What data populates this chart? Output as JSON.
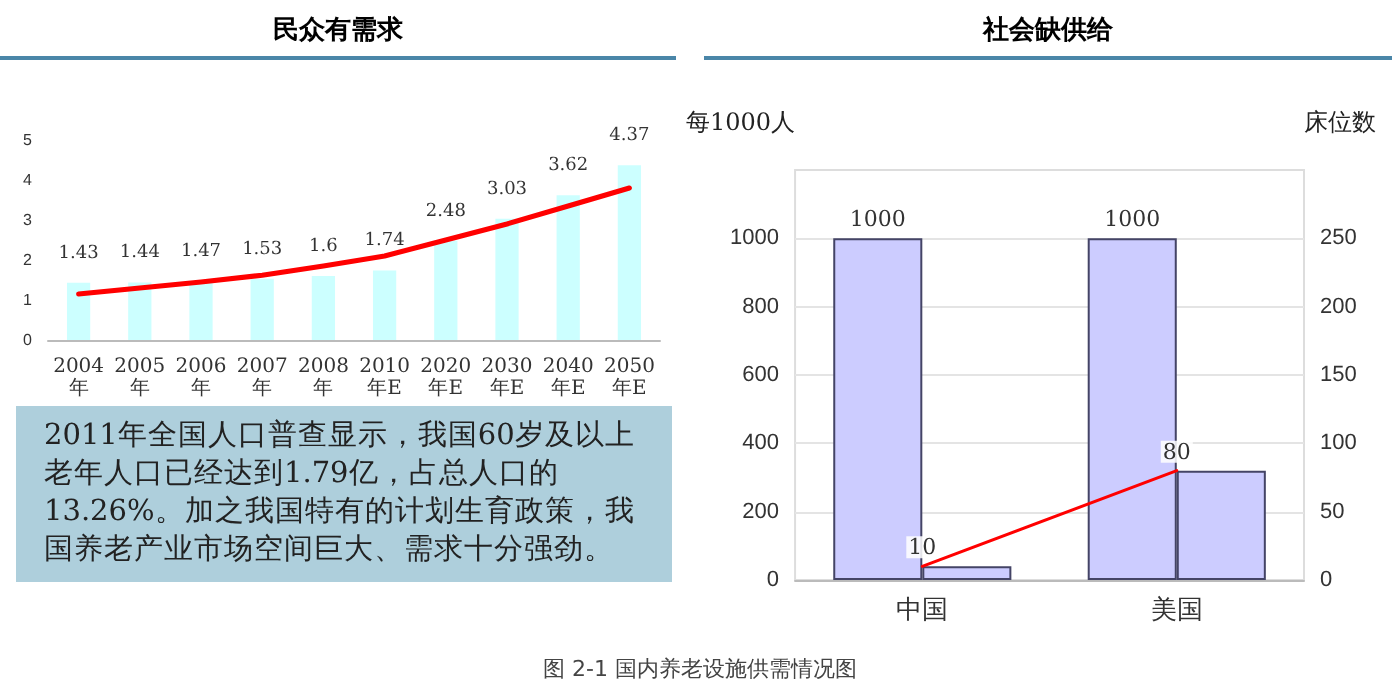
{
  "chart_data": [
    {
      "type": "bar",
      "title": "民众有需求",
      "categories": [
        "2004年",
        "2005年",
        "2006年",
        "2007年",
        "2008年",
        "2010年E",
        "2020年E",
        "2030年E",
        "2040年E",
        "2050年E"
      ],
      "series": [
        {
          "color": "#ccffff",
          "values": [
            1.43,
            1.44,
            1.47,
            1.53,
            1.6,
            1.74,
            2.48,
            3.03,
            3.62,
            4.37
          ],
          "value_labels": [
            "1.43",
            "1.44",
            "1.47",
            "1.53",
            "1.6",
            "1.74",
            "2.48",
            "3.03",
            "3.62",
            "4.37"
          ]
        },
        {
          "type": "line",
          "color": "#ff0000",
          "marker": "none",
          "values": [
            1.15,
            1.3,
            1.45,
            1.62,
            1.85,
            2.1,
            2.5,
            2.9,
            3.35,
            3.8
          ]
        }
      ],
      "ylim": [
        0,
        5
      ],
      "yticks": [
        0,
        1,
        2,
        3,
        4,
        5
      ],
      "data_labels": false,
      "grid": false
    },
    {
      "type": "other",
      "annotations": [
        "2011年全国人口普查显示，我国60岁及以上老年人口已经达到1.79亿，占总人口的13.26%。加之我国特有的计划生育政策，我国养老产业市场空间巨大、需求十分强劲。",
        "图 2-1 国内养老设施供需情况图"
      ]
    },
    {
      "type": "bar",
      "title": "社会缺供给",
      "categories": [
        "中国",
        "美国"
      ],
      "series": [
        {
          "color": "#ccccff",
          "values": [
            1000,
            1000
          ],
          "value_labels": [
            "1000",
            "1000"
          ]
        },
        {
          "color": "#ccccff",
          "axis": "y2",
          "values": [
            10,
            80
          ]
        },
        {
          "type": "line",
          "color": "#ff0000",
          "axis": "y2",
          "marker": "none",
          "values": [
            10,
            80
          ],
          "value_labels": [
            "10",
            "80"
          ]
        }
      ],
      "ylabel": "每1000人",
      "y2label": "床位数",
      "ylim": [
        0,
        1200
      ],
      "yticks": [
        0,
        200,
        400,
        600,
        800,
        1000
      ],
      "y2lim": [
        0,
        300
      ],
      "y2ticks": [
        0,
        50,
        100,
        150,
        200,
        250
      ],
      "grid": "y"
    }
  ]
}
